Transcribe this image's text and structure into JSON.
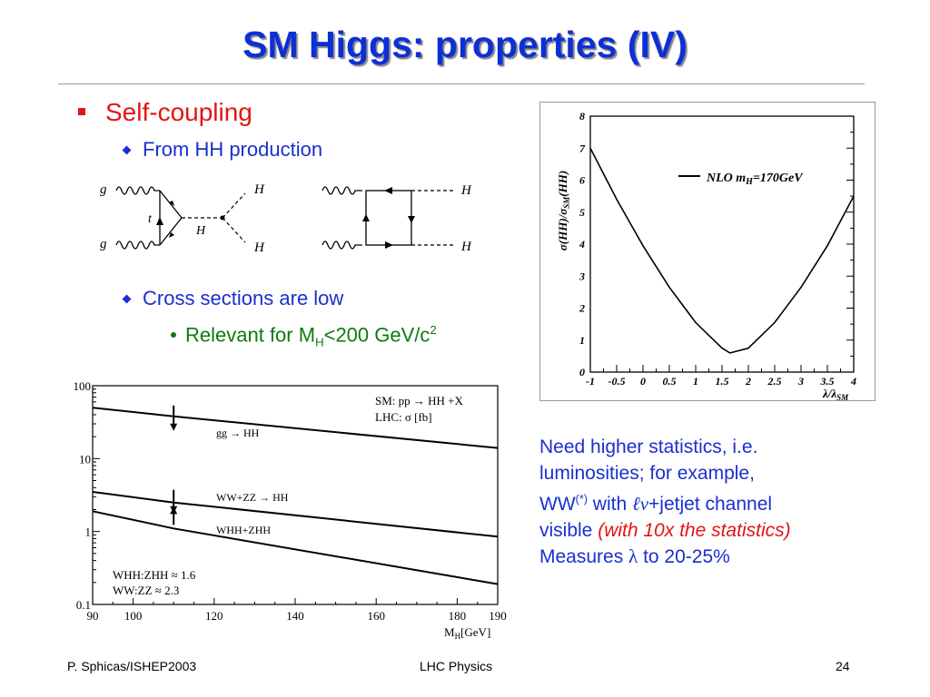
{
  "slide": {
    "title": "SM Higgs: properties (IV)",
    "bullet1": "Self-coupling",
    "sub1": "From HH production",
    "sub2": "Cross sections are low",
    "sub3_pre": "Relevant for M",
    "sub3_sub": "H",
    "sub3_post": "<200 GeV/c",
    "sub3_sup": "2"
  },
  "diagram": {
    "left": {
      "g_top": "g",
      "g_bot": "g",
      "t": "t",
      "H_mid": "H",
      "H_top": "H",
      "H_bot": "H"
    },
    "right": {
      "H_top": "H",
      "H_bot": "H"
    }
  },
  "note": {
    "line1": "Need higher statistics, i.e.",
    "line2": "luminosities; for example,",
    "line3_a": "WW",
    "line3_sup": "(*)",
    "line3_b": " with ",
    "line3_ell": "ℓν",
    "line3_c": "+jetjet channel",
    "line4_a": "visible ",
    "line4_red": "(with 10x the statistics)",
    "line5_a": "Measures ",
    "line5_lambda": "λ",
    "line5_b": " to 20-25%"
  },
  "footer": {
    "left": "P. Sphicas/ISHEP2003",
    "center": "LHC Physics",
    "right": "24"
  },
  "chart_data": [
    {
      "type": "line",
      "ylabel": "σ(HH)/σSM(HH)",
      "xlabel": "λ/λSM",
      "legend": "NLO mH=170GeV",
      "legend_position": "top-right",
      "xlim": [
        -1,
        4
      ],
      "ylim": [
        0,
        8
      ],
      "x_ticks": [
        "-1",
        "-0.5",
        "0",
        "0.5",
        "1",
        "1.5",
        "2",
        "2.5",
        "3",
        "3.5",
        "4"
      ],
      "y_ticks": [
        "0",
        "1",
        "2",
        "3",
        "4",
        "5",
        "6",
        "7",
        "8"
      ],
      "series": [
        {
          "name": "NLO mH=170GeV",
          "x": [
            -1,
            -0.5,
            0,
            0.5,
            1,
            1.5,
            1.65,
            2,
            2.5,
            3,
            3.5,
            4
          ],
          "values": [
            7.0,
            5.4,
            3.95,
            2.65,
            1.55,
            0.75,
            0.6,
            0.75,
            1.55,
            2.65,
            3.95,
            5.5
          ]
        }
      ]
    },
    {
      "type": "line",
      "xlabel": "MH[GeV]",
      "ylabel": "",
      "log_y": true,
      "xlim": [
        90,
        190
      ],
      "ylim": [
        0.1,
        100
      ],
      "x_ticks": [
        "90",
        "100",
        "120",
        "140",
        "160",
        "180",
        "190"
      ],
      "y_ticks": [
        "0.1",
        "1",
        "10",
        "100"
      ],
      "legend_box": {
        "line1": "SM: pp → HH +X",
        "line2": "LHC: σ [fb]"
      },
      "annotation": {
        "line1": "WHH:ZHH ≈ 1.6",
        "line2": "WW:ZZ ≈ 2.3"
      },
      "arrows_at_x": 110,
      "series": [
        {
          "name": "gg → HH",
          "x": [
            90,
            110,
            190
          ],
          "values": [
            50,
            38,
            14
          ]
        },
        {
          "name": "WW+ZZ → HH",
          "x": [
            90,
            110,
            190
          ],
          "values": [
            3.5,
            2.5,
            0.85
          ]
        },
        {
          "name": "WHH+ZHH",
          "x": [
            90,
            110,
            190
          ],
          "values": [
            1.9,
            1.1,
            0.19
          ]
        }
      ]
    }
  ]
}
